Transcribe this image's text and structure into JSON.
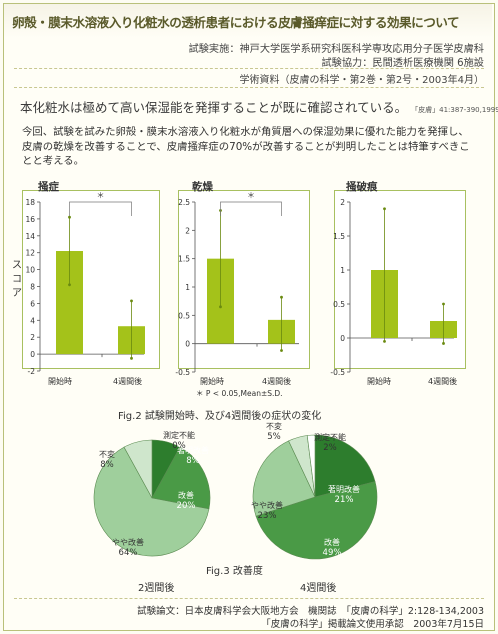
{
  "header": {
    "title": "卵殻・膜末水溶液入り化粧水の透析患者における皮膚掻痒症に対する効果について",
    "site_label": "試験実施",
    "site": "神戸大学医学系研究科医科学専攻応用分子医学皮膚科",
    "coop_label": "試験協力",
    "coop": "民間透析医療機関 6施設",
    "reference": "学術資料（皮膚の科学・第2巻・第2号・2003年4月）"
  },
  "lead": {
    "text": "本化粧水は極めて高い保湿能を発揮することが既に確認されている。",
    "cite": "「皮膚」41:387-390,1999"
  },
  "paragraph": "今回、試験を試みた卵殻・膜末水溶液入り化粧水が角質層への保湿効果に優れた能力を発揮し、皮膚の乾燥を改善することで、皮膚掻痒症の70%が改善することが判明したことは特筆すべきことと考える。",
  "figure2": {
    "caption": "Fig.2 試験開始時、及び4週間後の症状の変化",
    "ylabel": "スコア",
    "note": "＊ P < 0.05,Mean±S.D.",
    "sig_mark": "＊",
    "bar_color": "#a4c21a"
  },
  "chart_data": [
    {
      "type": "bar",
      "title": "掻症",
      "categories": [
        "開始時",
        "4週間後"
      ],
      "values": [
        12.2,
        3.3
      ],
      "error_bars": [
        [
          8.2,
          16.2
        ],
        [
          -0.5,
          6.3
        ]
      ],
      "ylabel": "スコア",
      "ylim": [
        -2,
        18
      ],
      "yticks": [
        -2,
        0,
        2,
        4,
        6,
        8,
        10,
        12,
        14,
        16,
        18
      ],
      "significance": "＊"
    },
    {
      "type": "bar",
      "title": "乾燥",
      "categories": [
        "開始時",
        "4週間後"
      ],
      "values": [
        1.5,
        0.42
      ],
      "error_bars": [
        [
          0.65,
          2.35
        ],
        [
          -0.12,
          0.82
        ]
      ],
      "ylim": [
        -0.5,
        2.5
      ],
      "yticks": [
        -0.5,
        0,
        0.5,
        1,
        1.5,
        2,
        2.5
      ],
      "significance": "＊"
    },
    {
      "type": "bar",
      "title": "掻破痕",
      "categories": [
        "開始時",
        "4週間後"
      ],
      "values": [
        1.0,
        0.25
      ],
      "error_bars": [
        [
          -0.05,
          1.9
        ],
        [
          -0.08,
          0.5
        ]
      ],
      "ylim": [
        -0.5,
        2
      ],
      "yticks": [
        -0.5,
        0,
        0.5,
        1,
        1.5,
        2
      ]
    },
    {
      "type": "pie",
      "title": "2週間後",
      "slices": [
        {
          "label": "著明改善",
          "value": 8,
          "color": "#2d7d2d"
        },
        {
          "label": "改善",
          "value": 20,
          "color": "#4a9a46"
        },
        {
          "label": "やや改善",
          "value": 64,
          "color": "#9fcf9c"
        },
        {
          "label": "不変",
          "value": 8,
          "color": "#cfe6cc"
        },
        {
          "label": "測定不能",
          "value": 0,
          "color": "#ffffff"
        }
      ]
    },
    {
      "type": "pie",
      "title": "4週間後",
      "slices": [
        {
          "label": "著明改善",
          "value": 21,
          "color": "#2d7d2d"
        },
        {
          "label": "改善",
          "value": 49,
          "color": "#4a9a46"
        },
        {
          "label": "やや改善",
          "value": 23,
          "color": "#9fcf9c"
        },
        {
          "label": "不変",
          "value": 5,
          "color": "#cfe6cc"
        },
        {
          "label": "測定不能",
          "value": 2,
          "color": "#ffffff"
        }
      ]
    }
  ],
  "figure3": {
    "caption": "Fig.3 改善度"
  },
  "footer": {
    "line1": "試験論文：日本皮膚科学会大阪地方会　機関誌　「皮膚の科学」2:128-134,2003",
    "line2": "「皮膚の科学」掲載論文使用承認　2003年7月15日"
  }
}
